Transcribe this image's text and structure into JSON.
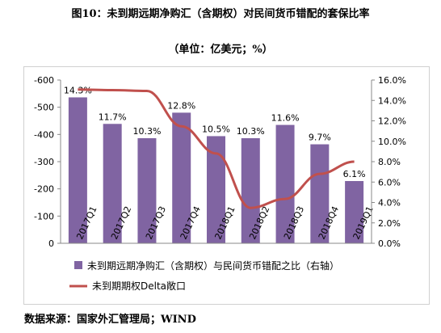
{
  "title": "图10：未到期远期净购汇（含期权）对民间货币错配的套保比率",
  "unit": "（单位：亿美元；%）",
  "source": "数据来源：国家外汇管理局；WIND",
  "colors": {
    "bar": "#8064a2",
    "line": "#c0504d"
  },
  "chart_data": {
    "type": "bar",
    "categories": [
      "2017Q1",
      "2017Q2",
      "2017Q3",
      "2017Q4",
      "2018Q1",
      "2018Q2",
      "2018Q3",
      "2018Q4",
      "2019Q1"
    ],
    "left_axis": {
      "ticks": [
        "-600",
        "-500",
        "-400",
        "-300",
        "-200",
        "-100",
        "0"
      ],
      "ylim": [
        0,
        -600
      ]
    },
    "right_axis": {
      "ticks": [
        "16.0%",
        "14.0%",
        "12.0%",
        "10.0%",
        "8.0%",
        "6.0%",
        "4.0%",
        "2.0%",
        "0.0%"
      ],
      "ylim": [
        0,
        16
      ]
    },
    "series": [
      {
        "name": "未到期远期净购汇（含期权）与民间货币错配之比（右轴）",
        "type": "bar",
        "axis": "right",
        "values": [
          14.3,
          11.7,
          10.3,
          12.8,
          10.5,
          10.3,
          11.6,
          9.7,
          6.1
        ],
        "labels": [
          "14.3%",
          "11.7%",
          "10.3%",
          "12.8%",
          "10.5%",
          "10.3%",
          "11.6%",
          "9.7%",
          "6.1%"
        ]
      },
      {
        "name": "未到期期权Delta敞口",
        "type": "line",
        "axis": "left",
        "values": [
          -565,
          -563,
          -560,
          -430,
          -330,
          -130,
          -163,
          -255,
          -300
        ]
      }
    ],
    "legend_position": "bottom",
    "grid": false
  }
}
